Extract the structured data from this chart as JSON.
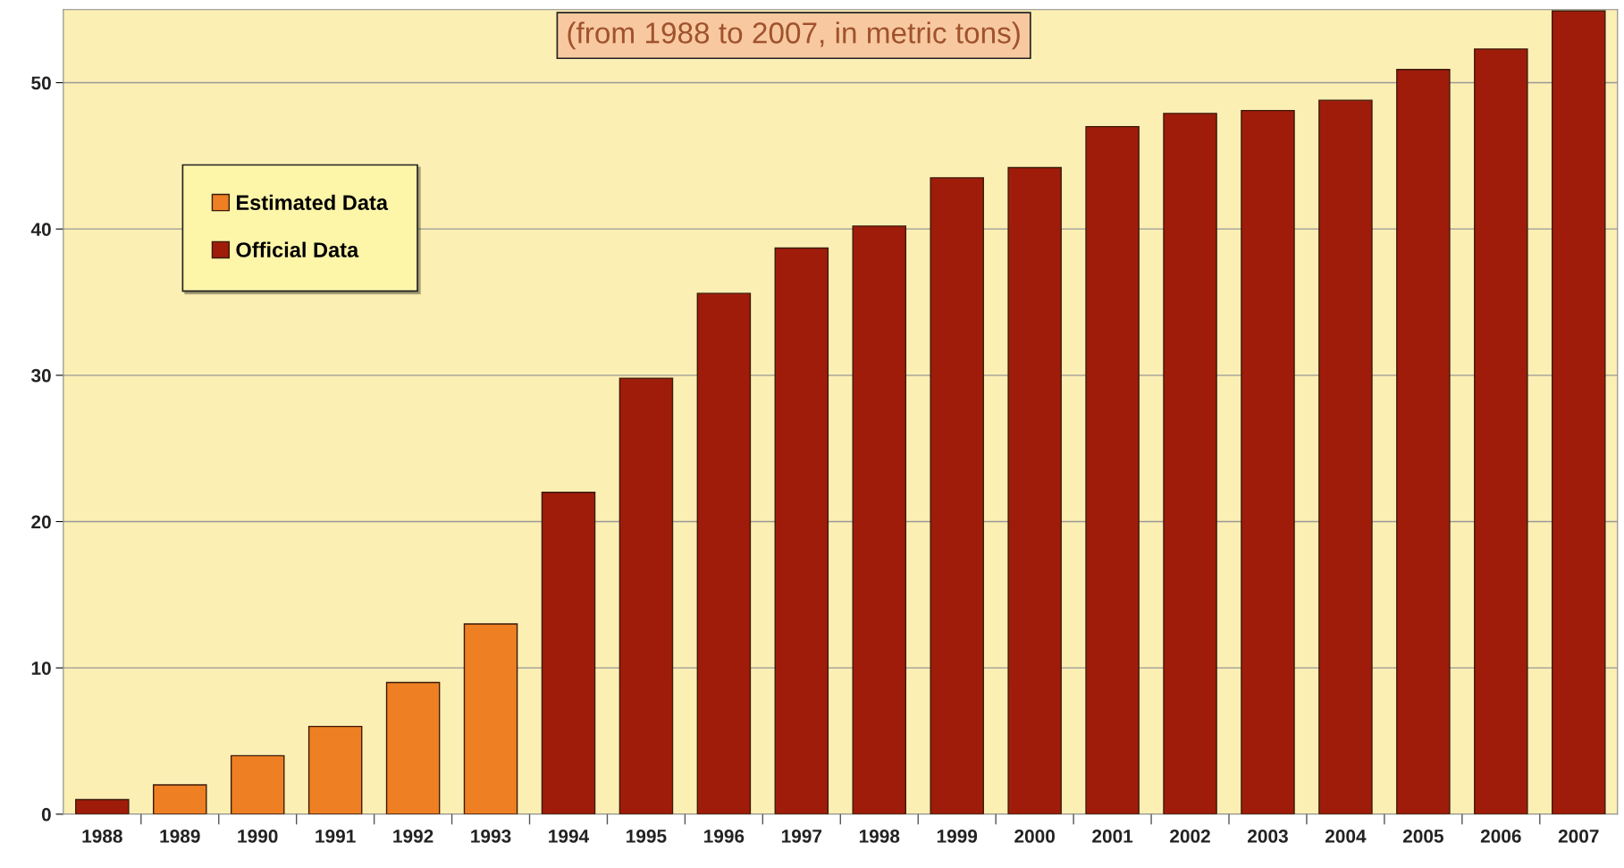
{
  "chart_data": {
    "type": "bar",
    "subtitle": "(from 1988 to 2007, in metric tons)",
    "categories": [
      "1988",
      "1989",
      "1990",
      "1991",
      "1992",
      "1993",
      "1994",
      "1995",
      "1996",
      "1997",
      "1998",
      "1999",
      "2000",
      "2001",
      "2002",
      "2003",
      "2004",
      "2005",
      "2006",
      "2007"
    ],
    "series": [
      {
        "name": "Estimated Data",
        "color": "#ee7f22",
        "values": [
          null,
          2,
          4,
          6,
          9,
          13,
          null,
          null,
          null,
          null,
          null,
          null,
          null,
          null,
          null,
          null,
          null,
          null,
          null,
          null
        ]
      },
      {
        "name": "Official Data",
        "color": "#a01c0a",
        "values": [
          1,
          null,
          null,
          null,
          null,
          null,
          22,
          29.8,
          35.6,
          38.7,
          40.2,
          43.5,
          44.2,
          47.0,
          47.9,
          48.1,
          48.8,
          50.9,
          52.3,
          54.9
        ]
      }
    ],
    "ylim": [
      0,
      55
    ],
    "yticks": [
      0,
      10,
      20,
      30,
      40,
      50
    ],
    "grid": "y",
    "legend": "top left"
  }
}
